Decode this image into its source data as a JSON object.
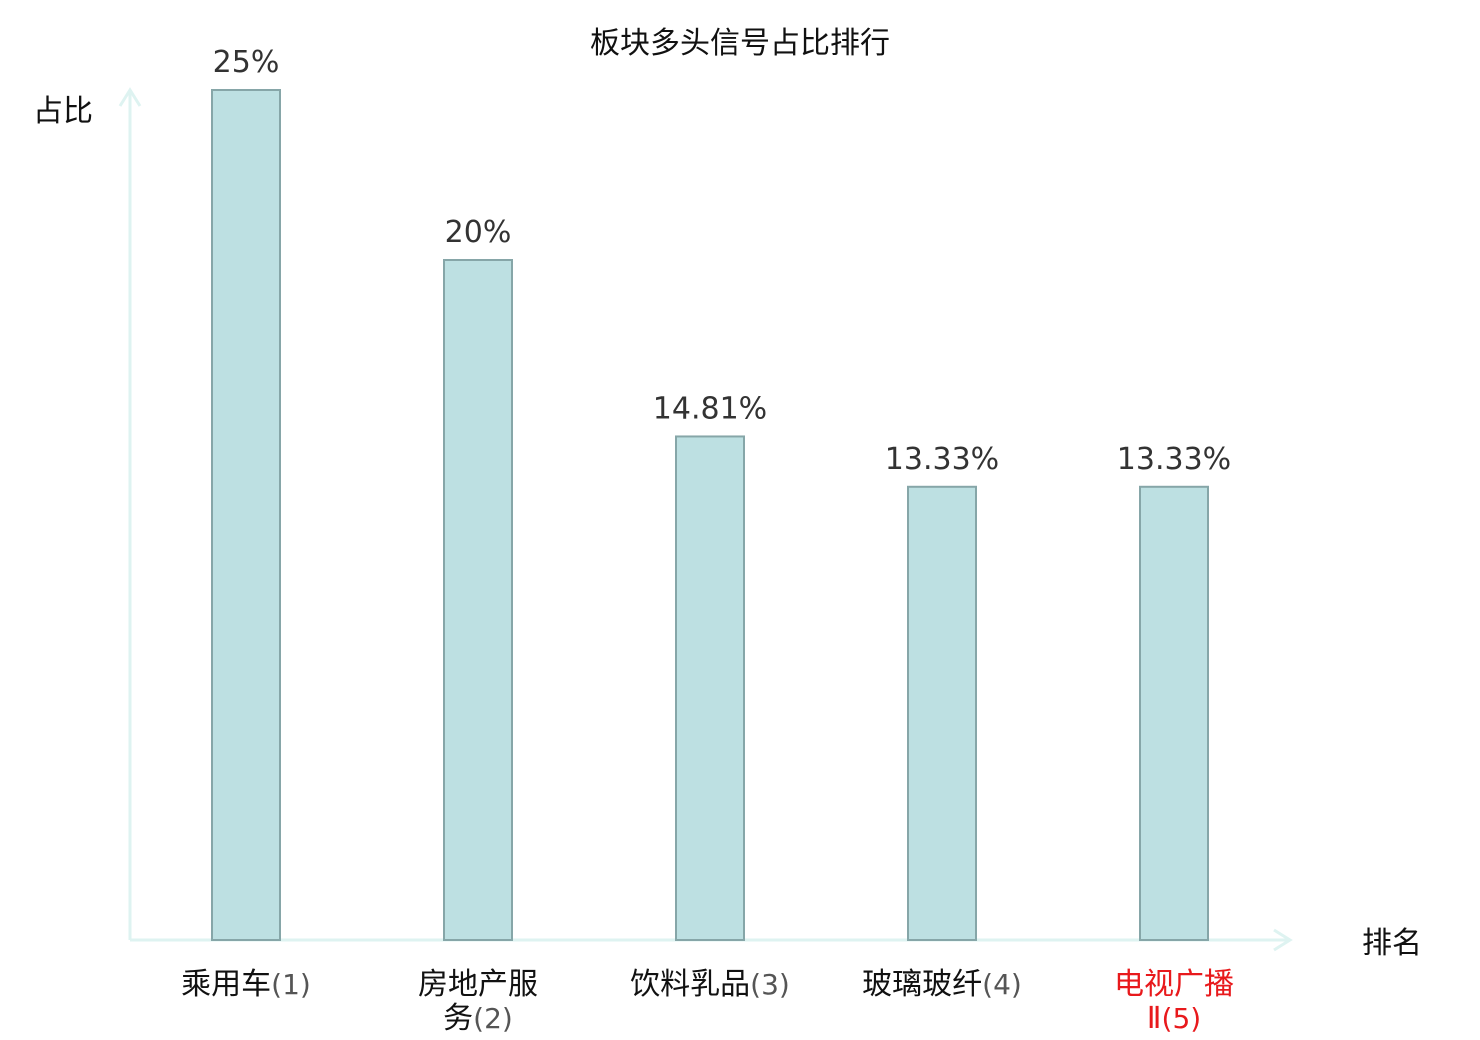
{
  "chart_data": {
    "type": "bar",
    "title": "板块多头信号占比排行",
    "xlabel": "排名",
    "ylabel": "占比",
    "categories": [
      {
        "name_lines": [
          "乘用车"
        ],
        "rank_suffix": "(1)",
        "highlight": false
      },
      {
        "name_lines": [
          "房地产服",
          "务"
        ],
        "rank_suffix": "(2)",
        "highlight": false
      },
      {
        "name_lines": [
          "饮料乳品"
        ],
        "rank_suffix": "(3)",
        "highlight": false
      },
      {
        "name_lines": [
          "玻璃玻纤"
        ],
        "rank_suffix": "(4)",
        "highlight": false
      },
      {
        "name_lines": [
          "电视广播",
          "Ⅱ"
        ],
        "rank_suffix": "(5)",
        "highlight": true
      }
    ],
    "values": [
      25,
      20,
      14.81,
      13.33,
      13.33
    ],
    "value_labels": [
      "25%",
      "20%",
      "14.81%",
      "13.33%",
      "13.33%"
    ],
    "ylim": [
      0,
      25
    ],
    "grid": false,
    "colors": {
      "bar_fill": "#bde0e2",
      "bar_stroke": "#86a6a8",
      "axis": "#def3f1",
      "text": "#111111",
      "value_text": "#333333",
      "highlight_text": "#e8191c"
    }
  }
}
